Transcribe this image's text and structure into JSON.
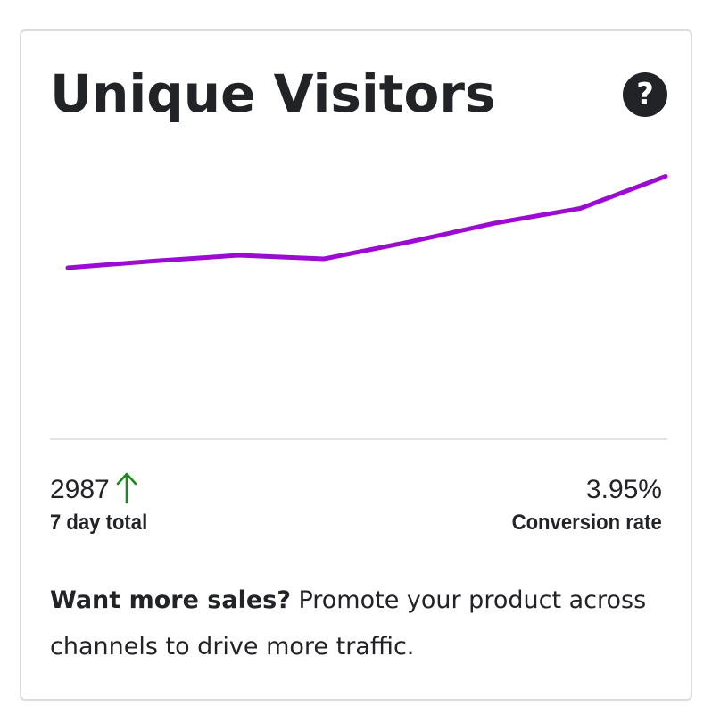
{
  "widget": {
    "title": "Unique Visitors",
    "help_icon": "question-circle-icon",
    "help_glyph": "?"
  },
  "chart_data": {
    "type": "line",
    "title": "",
    "xlabel": "",
    "ylabel": "",
    "x": [
      1,
      2,
      3,
      4,
      5,
      6,
      7,
      8
    ],
    "series": [
      {
        "values": [
          330,
          345,
          358,
          350,
          388,
          430,
          463,
          535
        ]
      }
    ],
    "xlim": [
      1,
      8
    ],
    "ylim": [
      0,
      600
    ],
    "grid": false,
    "legend": "none",
    "color": "#9b0bd1"
  },
  "stats": {
    "total": {
      "value": "2987",
      "trend": "up",
      "trend_icon": "arrow-up-icon",
      "trend_color": "#1a8a1a",
      "label": "7 day total"
    },
    "conversion": {
      "value": "3.95%",
      "label": "Conversion rate"
    }
  },
  "promo": {
    "strong": "Want more sales?",
    "text": " Promote your product across channels to drive more traffic."
  },
  "colors": {
    "text": "#222326",
    "border": "#dcdcdc",
    "line": "#9b0bd1",
    "trend_up": "#1a8a1a"
  }
}
